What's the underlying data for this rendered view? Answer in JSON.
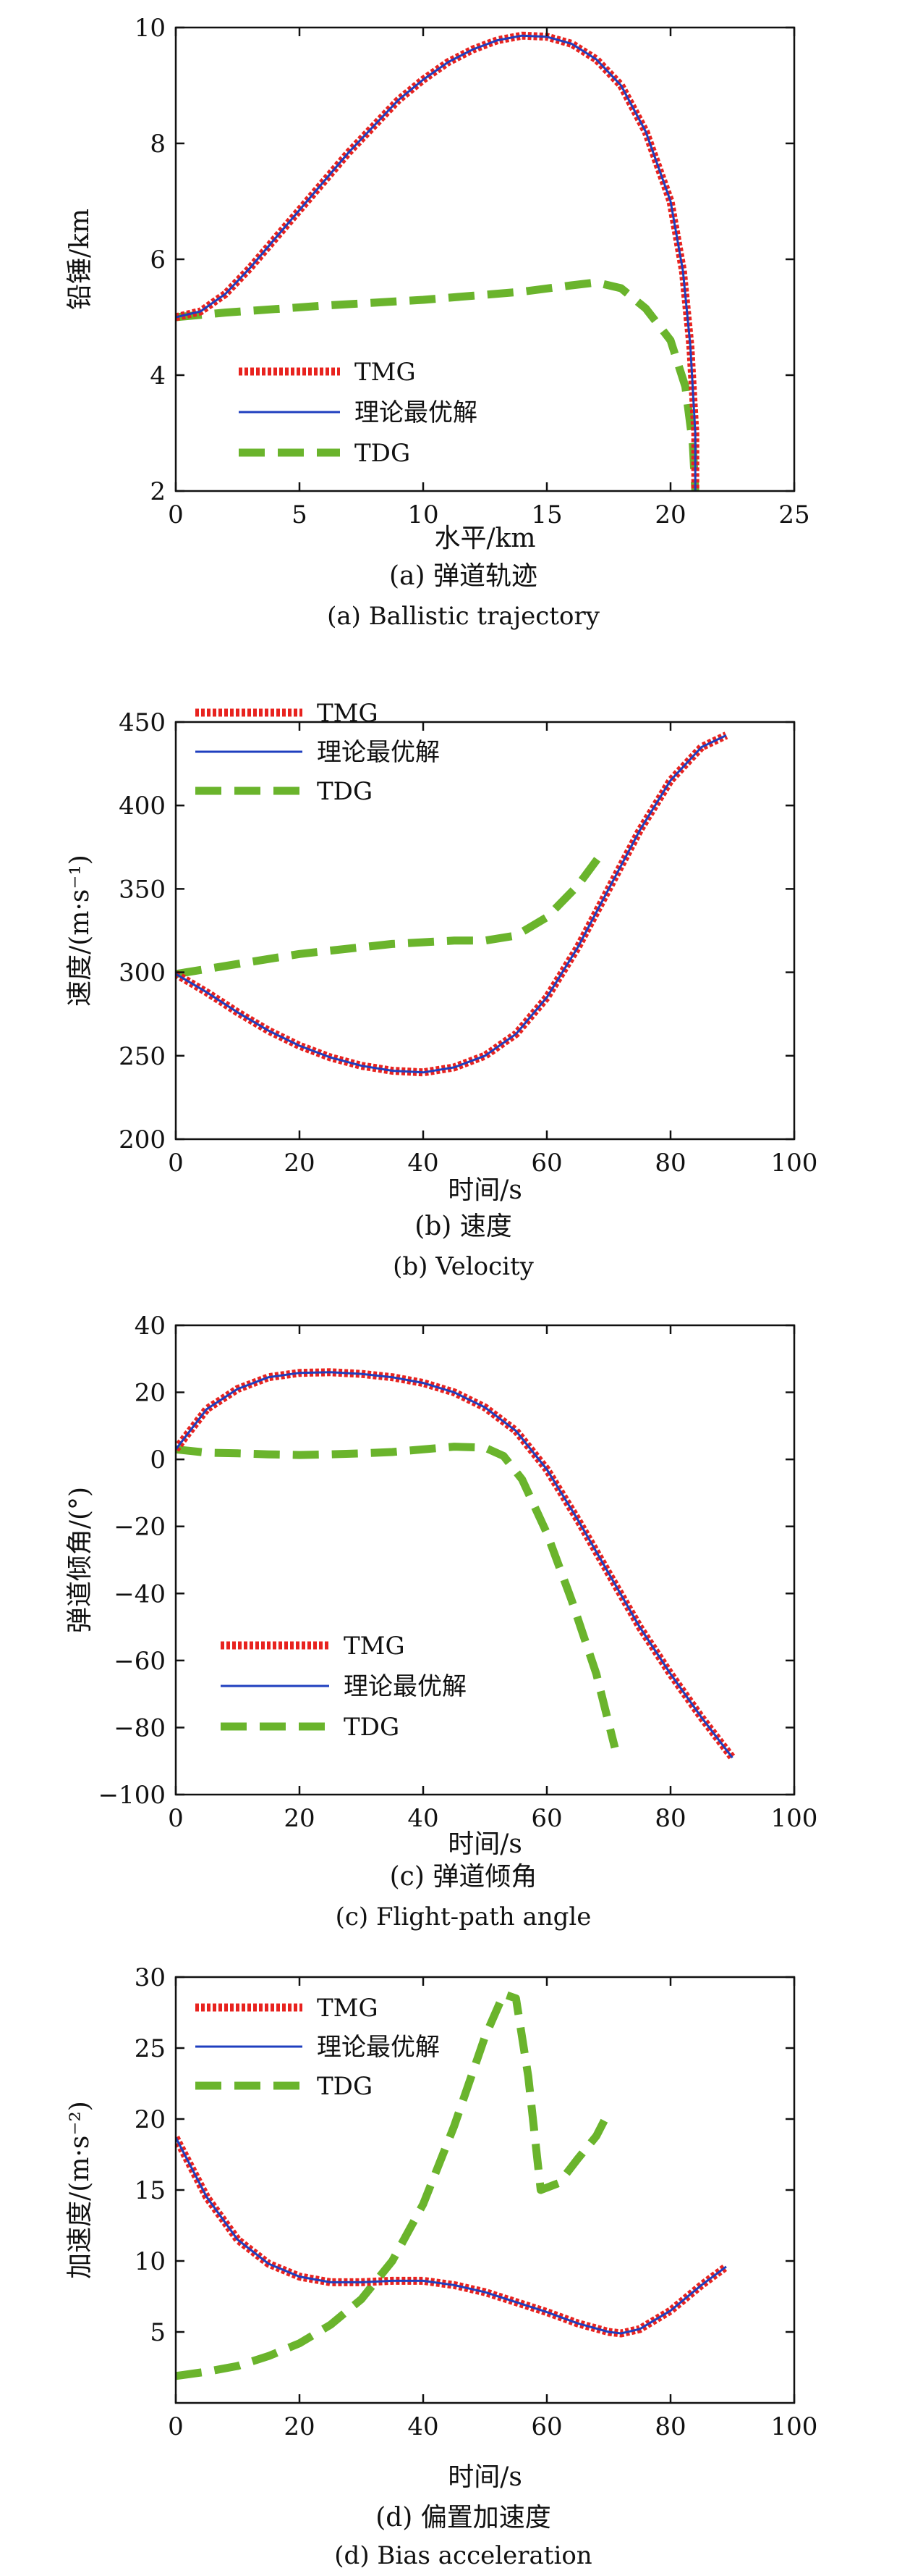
{
  "figure": {
    "legend_entries": [
      "TMG",
      "理论最优解",
      "TDG"
    ],
    "series_colors": {
      "TMG": "#e8231f",
      "理论最优解": "#1f3fbf",
      "TDG": "#6ab42c"
    }
  },
  "chart_data": [
    {
      "id": "a",
      "type": "line",
      "caption_cn": "(a) 弹道轨迹",
      "caption_en": "(a) Ballistic trajectory",
      "xlabel": "水平/km",
      "ylabel": "铅锤/km",
      "xlim": [
        0,
        25
      ],
      "ylim": [
        2,
        10
      ],
      "xticks": [
        0,
        5,
        10,
        15,
        20,
        25
      ],
      "yticks": [
        2,
        4,
        6,
        8,
        10
      ],
      "grid": false,
      "legend_position": "center-left",
      "series": [
        {
          "name": "TMG",
          "points": [
            [
              0,
              5.0
            ],
            [
              1,
              5.1
            ],
            [
              2,
              5.4
            ],
            [
              3,
              5.85
            ],
            [
              4,
              6.35
            ],
            [
              5,
              6.85
            ],
            [
              6,
              7.35
            ],
            [
              7,
              7.85
            ],
            [
              8,
              8.3
            ],
            [
              9,
              8.75
            ],
            [
              10,
              9.1
            ],
            [
              11,
              9.4
            ],
            [
              12,
              9.62
            ],
            [
              13,
              9.78
            ],
            [
              14,
              9.86
            ],
            [
              15,
              9.84
            ],
            [
              16,
              9.72
            ],
            [
              17,
              9.45
            ],
            [
              18,
              9.0
            ],
            [
              19,
              8.2
            ],
            [
              20,
              7.0
            ],
            [
              20.5,
              5.8
            ],
            [
              20.8,
              4.5
            ],
            [
              21.0,
              3.0
            ],
            [
              21.0,
              2.0
            ]
          ]
        },
        {
          "name": "理论最优解",
          "points": [
            [
              0,
              5.0
            ],
            [
              1,
              5.1
            ],
            [
              2,
              5.4
            ],
            [
              3,
              5.85
            ],
            [
              4,
              6.35
            ],
            [
              5,
              6.85
            ],
            [
              6,
              7.35
            ],
            [
              7,
              7.85
            ],
            [
              8,
              8.3
            ],
            [
              9,
              8.75
            ],
            [
              10,
              9.1
            ],
            [
              11,
              9.4
            ],
            [
              12,
              9.62
            ],
            [
              13,
              9.78
            ],
            [
              14,
              9.86
            ],
            [
              15,
              9.84
            ],
            [
              16,
              9.72
            ],
            [
              17,
              9.45
            ],
            [
              18,
              9.0
            ],
            [
              19,
              8.2
            ],
            [
              20,
              7.0
            ],
            [
              20.5,
              5.8
            ],
            [
              20.8,
              4.5
            ],
            [
              21.0,
              3.0
            ],
            [
              21.0,
              2.0
            ]
          ]
        },
        {
          "name": "TDG",
          "points": [
            [
              0,
              5.0
            ],
            [
              2,
              5.08
            ],
            [
              4,
              5.14
            ],
            [
              6,
              5.2
            ],
            [
              8,
              5.25
            ],
            [
              10,
              5.3
            ],
            [
              12,
              5.37
            ],
            [
              14,
              5.44
            ],
            [
              16,
              5.55
            ],
            [
              17,
              5.6
            ],
            [
              18,
              5.5
            ],
            [
              19,
              5.15
            ],
            [
              20,
              4.6
            ],
            [
              20.6,
              3.8
            ],
            [
              20.9,
              2.8
            ],
            [
              21.0,
              2.0
            ]
          ]
        }
      ]
    },
    {
      "id": "b",
      "type": "line",
      "caption_cn": "(b) 速度",
      "caption_en": "(b) Velocity",
      "xlabel": "时间/s",
      "ylabel": "速度/(m·s⁻¹)",
      "xlim": [
        0,
        100
      ],
      "ylim": [
        200,
        450
      ],
      "xticks": [
        0,
        20,
        40,
        60,
        80,
        100
      ],
      "yticks": [
        200,
        250,
        300,
        350,
        400,
        450
      ],
      "grid": false,
      "legend_position": "top-left",
      "series": [
        {
          "name": "TMG",
          "points": [
            [
              0,
              299
            ],
            [
              5,
              288
            ],
            [
              10,
              276
            ],
            [
              15,
              265
            ],
            [
              20,
              256
            ],
            [
              25,
              249
            ],
            [
              30,
              244
            ],
            [
              35,
              241
            ],
            [
              40,
              240
            ],
            [
              45,
              243
            ],
            [
              50,
              250
            ],
            [
              55,
              263
            ],
            [
              60,
              285
            ],
            [
              65,
              315
            ],
            [
              70,
              350
            ],
            [
              75,
              385
            ],
            [
              80,
              415
            ],
            [
              85,
              435
            ],
            [
              89,
              442
            ]
          ]
        },
        {
          "name": "理论最优解",
          "points": [
            [
              0,
              299
            ],
            [
              5,
              288
            ],
            [
              10,
              276
            ],
            [
              15,
              265
            ],
            [
              20,
              256
            ],
            [
              25,
              249
            ],
            [
              30,
              244
            ],
            [
              35,
              241
            ],
            [
              40,
              240
            ],
            [
              45,
              243
            ],
            [
              50,
              250
            ],
            [
              55,
              263
            ],
            [
              60,
              285
            ],
            [
              65,
              315
            ],
            [
              70,
              350
            ],
            [
              75,
              385
            ],
            [
              80,
              415
            ],
            [
              85,
              435
            ],
            [
              89,
              442
            ]
          ]
        },
        {
          "name": "TDG",
          "points": [
            [
              0,
              299
            ],
            [
              5,
              302
            ],
            [
              10,
              305
            ],
            [
              15,
              308
            ],
            [
              20,
              311
            ],
            [
              25,
              313
            ],
            [
              30,
              315
            ],
            [
              35,
              317
            ],
            [
              40,
              318
            ],
            [
              45,
              319
            ],
            [
              50,
              319
            ],
            [
              55,
              322
            ],
            [
              60,
              333
            ],
            [
              65,
              352
            ],
            [
              69,
              372
            ]
          ]
        }
      ]
    },
    {
      "id": "c",
      "type": "line",
      "caption_cn": "(c) 弹道倾角",
      "caption_en": "(c) Flight-path angle",
      "xlabel": "时间/s",
      "ylabel": "弹道倾角/(°)",
      "xlim": [
        0,
        100
      ],
      "ylim": [
        -100,
        40
      ],
      "xticks": [
        0,
        20,
        40,
        60,
        80,
        100
      ],
      "yticks": [
        -100,
        -80,
        -60,
        -40,
        -20,
        0,
        20,
        40
      ],
      "grid": false,
      "legend_position": "bottom-left",
      "series": [
        {
          "name": "TMG",
          "points": [
            [
              0,
              3
            ],
            [
              5,
              15
            ],
            [
              10,
              21
            ],
            [
              15,
              24.5
            ],
            [
              20,
              25.8
            ],
            [
              25,
              26
            ],
            [
              30,
              25.5
            ],
            [
              35,
              24.5
            ],
            [
              40,
              22.8
            ],
            [
              45,
              20
            ],
            [
              50,
              15.5
            ],
            [
              55,
              8.5
            ],
            [
              60,
              -3
            ],
            [
              65,
              -18
            ],
            [
              70,
              -34
            ],
            [
              75,
              -50
            ],
            [
              80,
              -64
            ],
            [
              85,
              -77
            ],
            [
              90,
              -89
            ]
          ]
        },
        {
          "name": "理论最优解",
          "points": [
            [
              0,
              3
            ],
            [
              5,
              15
            ],
            [
              10,
              21
            ],
            [
              15,
              24.5
            ],
            [
              20,
              25.8
            ],
            [
              25,
              26
            ],
            [
              30,
              25.5
            ],
            [
              35,
              24.5
            ],
            [
              40,
              22.8
            ],
            [
              45,
              20
            ],
            [
              50,
              15.5
            ],
            [
              55,
              8.5
            ],
            [
              60,
              -3
            ],
            [
              65,
              -18
            ],
            [
              70,
              -34
            ],
            [
              75,
              -50
            ],
            [
              80,
              -64
            ],
            [
              85,
              -77
            ],
            [
              90,
              -89
            ]
          ]
        },
        {
          "name": "TDG",
          "points": [
            [
              0,
              3
            ],
            [
              5,
              2
            ],
            [
              10,
              1.8
            ],
            [
              15,
              1.5
            ],
            [
              20,
              1.3
            ],
            [
              25,
              1.5
            ],
            [
              30,
              1.8
            ],
            [
              35,
              2.2
            ],
            [
              40,
              3
            ],
            [
              45,
              3.8
            ],
            [
              50,
              3.5
            ],
            [
              53,
              1
            ],
            [
              56,
              -6
            ],
            [
              60,
              -22
            ],
            [
              64,
              -42
            ],
            [
              68,
              -64
            ],
            [
              71,
              -86
            ]
          ]
        }
      ]
    },
    {
      "id": "d",
      "type": "line",
      "caption_cn": "(d) 偏置加速度",
      "caption_en": "(d) Bias acceleration",
      "xlabel": "时间/s",
      "ylabel": "加速度/(m·s⁻²)",
      "xlim": [
        0,
        100
      ],
      "ylim": [
        0,
        30
      ],
      "xticks": [
        0,
        20,
        40,
        60,
        80,
        100
      ],
      "yticks": [
        5,
        10,
        15,
        20,
        25,
        30
      ],
      "grid": false,
      "legend_position": "top-left",
      "series": [
        {
          "name": "TMG",
          "points": [
            [
              0,
              18.7
            ],
            [
              5,
              14.5
            ],
            [
              10,
              11.5
            ],
            [
              15,
              9.8
            ],
            [
              20,
              8.9
            ],
            [
              25,
              8.5
            ],
            [
              30,
              8.5
            ],
            [
              35,
              8.6
            ],
            [
              40,
              8.6
            ],
            [
              45,
              8.3
            ],
            [
              50,
              7.8
            ],
            [
              55,
              7.1
            ],
            [
              60,
              6.4
            ],
            [
              65,
              5.6
            ],
            [
              70,
              5.0
            ],
            [
              72,
              4.9
            ],
            [
              75,
              5.2
            ],
            [
              80,
              6.5
            ],
            [
              85,
              8.3
            ],
            [
              89,
              9.6
            ]
          ]
        },
        {
          "name": "理论最优解",
          "points": [
            [
              0,
              18.7
            ],
            [
              5,
              14.5
            ],
            [
              10,
              11.5
            ],
            [
              15,
              9.8
            ],
            [
              20,
              8.9
            ],
            [
              25,
              8.5
            ],
            [
              30,
              8.5
            ],
            [
              35,
              8.6
            ],
            [
              40,
              8.6
            ],
            [
              45,
              8.3
            ],
            [
              50,
              7.8
            ],
            [
              55,
              7.1
            ],
            [
              60,
              6.4
            ],
            [
              65,
              5.6
            ],
            [
              70,
              5.0
            ],
            [
              72,
              4.9
            ],
            [
              75,
              5.2
            ],
            [
              80,
              6.5
            ],
            [
              85,
              8.3
            ],
            [
              89,
              9.6
            ]
          ]
        },
        {
          "name": "TDG",
          "points": [
            [
              0,
              1.9
            ],
            [
              5,
              2.2
            ],
            [
              10,
              2.6
            ],
            [
              15,
              3.3
            ],
            [
              20,
              4.2
            ],
            [
              25,
              5.5
            ],
            [
              30,
              7.3
            ],
            [
              35,
              10
            ],
            [
              40,
              14
            ],
            [
              45,
              19.5
            ],
            [
              50,
              25.8
            ],
            [
              53,
              28.8
            ],
            [
              55,
              28.5
            ],
            [
              57,
              23
            ],
            [
              59,
              15
            ],
            [
              62,
              15.5
            ],
            [
              65,
              17.2
            ],
            [
              68,
              18.8
            ],
            [
              70,
              20.5
            ]
          ]
        }
      ]
    }
  ]
}
